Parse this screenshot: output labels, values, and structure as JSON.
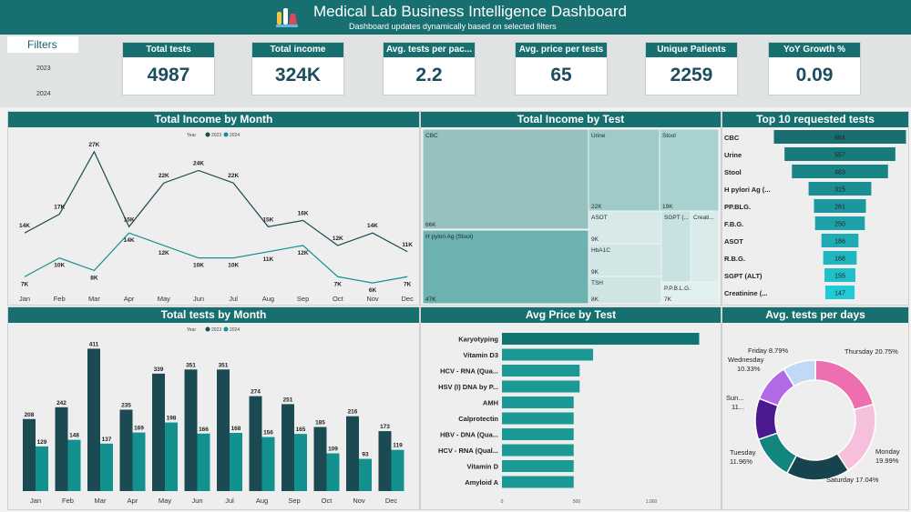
{
  "header": {
    "title": "Medical Lab Business Intelligence Dashboard",
    "subtitle": "Dashboard updates dynamically based on selected filters"
  },
  "filters": {
    "label": "Filters",
    "years": [
      "2023",
      "2024"
    ]
  },
  "kpis": [
    {
      "label": "Total tests",
      "value": "4987"
    },
    {
      "label": "Total income",
      "value": "324K"
    },
    {
      "label": "Avg. tests per pac...",
      "value": "2.2"
    },
    {
      "label": "Avg. price per tests",
      "value": "65"
    },
    {
      "label": "Unique Patients",
      "value": "2259"
    },
    {
      "label": "YoY Growth %",
      "value": "0.09"
    }
  ],
  "colors": {
    "y2023": "#1c4a52",
    "y2024": "#12918e",
    "header": "#17706f"
  },
  "chart_data": [
    {
      "type": "line",
      "title": "Total Income by Month",
      "legend_title": "Year",
      "categories": [
        "Jan",
        "Feb",
        "Mar",
        "Apr",
        "May",
        "Jun",
        "Jul",
        "Aug",
        "Sep",
        "Oct",
        "Nov",
        "Dec"
      ],
      "series": [
        {
          "name": "2023",
          "values": [
            14,
            17,
            27,
            15,
            22,
            24,
            22,
            15,
            16,
            12,
            14,
            11
          ],
          "labels": [
            "14K",
            "17K",
            "27K",
            "15K",
            "22K",
            "24K",
            "22K",
            "15K",
            "16K",
            "12K",
            "14K",
            "11K"
          ]
        },
        {
          "name": "2024",
          "values": [
            7,
            10,
            8,
            14,
            12,
            10,
            10,
            11,
            12,
            7,
            6,
            7
          ],
          "labels": [
            "7K",
            "10K",
            "8K",
            "14K",
            "12K",
            "10K",
            "10K",
            "11K",
            "12K",
            "7K",
            "6K",
            "7K"
          ]
        }
      ]
    },
    {
      "type": "treemap",
      "title": "Total Income by Test",
      "items": [
        {
          "name": "CBC",
          "label": "66K"
        },
        {
          "name": "H pylori Ag (Stool)",
          "label": "47K"
        },
        {
          "name": "Urine",
          "label": "22K"
        },
        {
          "name": "Stool",
          "label": "19K"
        },
        {
          "name": "ASOT",
          "label": "9K"
        },
        {
          "name": "SGPT (...",
          "label": "8K"
        },
        {
          "name": "Creati...",
          "label": "7K"
        },
        {
          "name": "HbA1C",
          "label": "9K"
        },
        {
          "name": "TSH",
          "label": "8K"
        },
        {
          "name": "P.P.B.L.G.",
          "label": "7K"
        }
      ]
    },
    {
      "type": "funnel",
      "title": "Top 10 requested tests",
      "categories": [
        "CBC",
        "Urine",
        "Stool",
        "H pylori Ag (...",
        "PP.BLG.",
        "F.B.G.",
        "ASOT",
        "R.B.G.",
        "SGPT (ALT)",
        "Creatinine (..."
      ],
      "values": [
        664,
        557,
        483,
        315,
        261,
        250,
        186,
        168,
        155,
        147
      ]
    },
    {
      "type": "bar",
      "title": "Total tests by Month",
      "legend_title": "Year",
      "categories": [
        "Jan",
        "Feb",
        "Mar",
        "Apr",
        "May",
        "Jun",
        "Jul",
        "Aug",
        "Sep",
        "Oct",
        "Nov",
        "Dec"
      ],
      "series": [
        {
          "name": "2023",
          "values": [
            208,
            242,
            411,
            235,
            339,
            351,
            351,
            274,
            251,
            185,
            216,
            173
          ]
        },
        {
          "name": "2024",
          "values": [
            129,
            148,
            137,
            169,
            198,
            166,
            168,
            156,
            165,
            109,
            93,
            119
          ]
        }
      ]
    },
    {
      "type": "bar",
      "orientation": "horizontal",
      "title": "Avg Price by Test",
      "categories": [
        "Karyotyping",
        "Vitamin D3",
        "HCV - RNA (Qua...",
        "HSV (I) DNA by P...",
        "AMH",
        "Calprotectin",
        "HBV - DNA (Qua...",
        "HCV - RNA (Qual...",
        "Vitamin D",
        "Amyloid A"
      ],
      "values": [
        1320,
        610,
        520,
        520,
        480,
        480,
        480,
        480,
        480,
        480
      ],
      "ticks": [
        "0",
        "500",
        "1,000"
      ]
    },
    {
      "type": "pie",
      "title": "Avg. tests per days",
      "slices": [
        {
          "name": "Thursday",
          "label": "Thursday 20.75%",
          "value": 20.75,
          "color": "#ee6fb0"
        },
        {
          "name": "Monday",
          "label": "Monday 19.99%",
          "value": 19.99,
          "color": "#f6bfdc"
        },
        {
          "name": "Saturday",
          "label": "Saturday 17.04%",
          "value": 17.04,
          "color": "#17434e"
        },
        {
          "name": "Tuesday",
          "label": "Tuesday 11.96%",
          "value": 11.96,
          "color": "#12857f"
        },
        {
          "name": "Sunday",
          "label": "Sun... 11...",
          "value": 11.1,
          "color": "#4b1a8e"
        },
        {
          "name": "Wednesday",
          "label": "Wednesday 10.33%",
          "value": 10.33,
          "color": "#b16ae6"
        },
        {
          "name": "Friday",
          "label": "Friday 8.79%",
          "value": 8.79,
          "color": "#c1d9f4"
        }
      ]
    }
  ]
}
